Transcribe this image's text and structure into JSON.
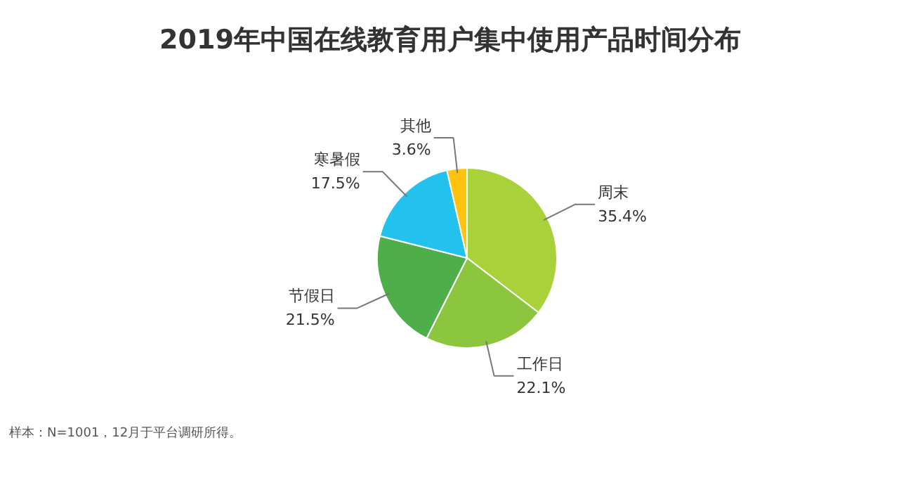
{
  "chart_data": {
    "type": "pie",
    "title": "2019年中国在线教育用户集中使用产品时间分布",
    "categories": [
      "周末",
      "工作日",
      "节假日",
      "寒暑假",
      "其他"
    ],
    "values": [
      35.4,
      22.1,
      21.5,
      17.5,
      3.6
    ],
    "colors": [
      "#a9d13a",
      "#8cc63f",
      "#4dae4a",
      "#22c1ee",
      "#ffc20e"
    ],
    "value_labels": [
      "35.4%",
      "22.1%",
      "21.5%",
      "17.5%",
      "3.6%"
    ],
    "annotations": [
      "样本：N=1001，12月于平台调研所得。"
    ]
  }
}
